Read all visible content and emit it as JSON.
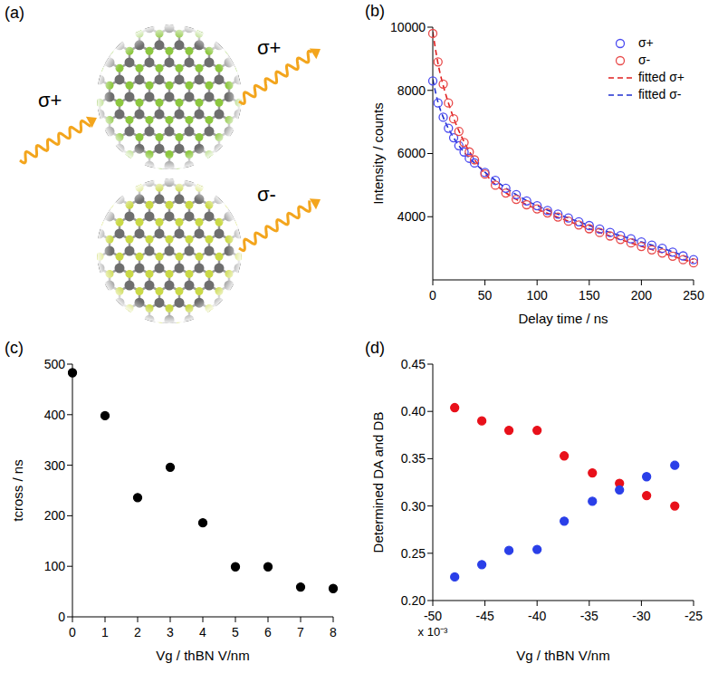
{
  "diagram": {
    "panel": "(a)",
    "arrows": [
      "σ+",
      "σ+",
      "σ-"
    ]
  },
  "chart_data": [
    {
      "type": "line",
      "title": "(b)",
      "x_label": "Delay time / ns",
      "y_label": "Intensity / counts",
      "x": [
        0,
        5,
        10,
        15,
        20,
        25,
        30,
        35,
        40,
        50,
        60,
        70,
        80,
        90,
        100,
        110,
        120,
        130,
        140,
        150,
        160,
        170,
        180,
        190,
        200,
        210,
        220,
        230,
        240,
        250
      ],
      "series": [
        {
          "name": "σ+",
          "type": "scatter",
          "marker": "open_circle",
          "color": "#4a4af0",
          "values": [
            8300,
            7600,
            7150,
            6800,
            6500,
            6250,
            6050,
            5850,
            5700,
            5400,
            5150,
            4900,
            4700,
            4500,
            4350,
            4200,
            4080,
            3960,
            3840,
            3720,
            3610,
            3500,
            3400,
            3300,
            3200,
            3100,
            3000,
            2880,
            2760,
            2640
          ]
        },
        {
          "name": "σ-",
          "type": "scatter",
          "marker": "open_circle",
          "color": "#e84a4a",
          "values": [
            9800,
            8900,
            8200,
            7600,
            7100,
            6700,
            6350,
            6050,
            5800,
            5350,
            5000,
            4750,
            4550,
            4380,
            4250,
            4120,
            3990,
            3860,
            3740,
            3620,
            3500,
            3390,
            3280,
            3170,
            3060,
            2950,
            2850,
            2750,
            2640,
            2540
          ]
        },
        {
          "name": "fitted σ+",
          "type": "line",
          "line_style": "dashed",
          "color": "#e02020",
          "values": [
            9850,
            8850,
            8150,
            7600,
            7120,
            6720,
            6370,
            6070,
            5810,
            5370,
            5020,
            4760,
            4550,
            4380,
            4240,
            4110,
            3980,
            3860,
            3740,
            3620,
            3500,
            3390,
            3280,
            3170,
            3060,
            2960,
            2860,
            2750,
            2650,
            2550
          ]
        },
        {
          "name": "fitted σ-",
          "type": "line",
          "line_style": "dashed",
          "color": "#2030d0",
          "values": [
            8350,
            7620,
            7150,
            6790,
            6500,
            6250,
            6040,
            5860,
            5700,
            5410,
            5150,
            4910,
            4700,
            4510,
            4350,
            4210,
            4080,
            3960,
            3840,
            3720,
            3610,
            3500,
            3400,
            3300,
            3200,
            3100,
            3000,
            2890,
            2770,
            2650
          ]
        }
      ],
      "xlim": [
        0,
        250
      ],
      "ylim": [
        2000,
        10000
      ],
      "xticks": [
        0,
        50,
        100,
        150,
        200,
        250
      ],
      "yticks": [
        4000,
        6000,
        8000,
        10000
      ],
      "legend": "upper right"
    },
    {
      "type": "scatter",
      "title": "(c)",
      "x_label": "Vg / thBN  V/nm",
      "y_label": "tcross / ns",
      "x": [
        0,
        1,
        2,
        3,
        4,
        5,
        6,
        7,
        8
      ],
      "series": [
        {
          "marker": "circle",
          "color": "#000000",
          "values": [
            483,
            398,
            236,
            296,
            186,
            99,
            99,
            59,
            56
          ]
        }
      ],
      "xlim": [
        0,
        8
      ],
      "ylim": [
        0,
        500
      ],
      "xticks": [
        0,
        1,
        2,
        3,
        4,
        5,
        6,
        7,
        8
      ],
      "yticks": [
        0,
        100,
        200,
        300,
        400,
        500
      ]
    },
    {
      "type": "scatter",
      "title": "(d)",
      "x_label": "Vg / thBN  V/nm",
      "y_label": "Determined DA and DB",
      "annotation": "x 10⁻³",
      "x": [
        -0.0479,
        -0.0453,
        -0.0427,
        -0.04,
        -0.0374,
        -0.0347,
        -0.0321,
        -0.0295,
        -0.0268
      ],
      "series": [
        {
          "marker": "circle",
          "color": "#e8101a",
          "values": [
            0.404,
            0.39,
            0.38,
            0.38,
            0.353,
            0.335,
            0.324,
            0.311,
            0.3
          ]
        },
        {
          "marker": "circle",
          "color": "#2a3fe8",
          "values": [
            0.225,
            0.238,
            0.253,
            0.254,
            0.284,
            0.305,
            0.317,
            0.331,
            0.343
          ]
        }
      ],
      "xlim": [
        -0.05,
        -0.025
      ],
      "ylim": [
        0.2,
        0.45
      ],
      "xticks": [
        {
          "value": -0.05,
          "label": "-50"
        },
        {
          "value": -0.045,
          "label": "-45"
        },
        {
          "value": -0.04,
          "label": "-40"
        },
        {
          "value": -0.035,
          "label": "-35"
        },
        {
          "value": -0.03,
          "label": "-30"
        },
        {
          "value": -0.025,
          "label": "-25"
        }
      ],
      "yticks": [
        {
          "value": 0.2,
          "label": "0.20"
        },
        0.25,
        {
          "value": 0.3,
          "label": "0.30"
        },
        0.35,
        {
          "value": 0.4,
          "label": "0.40"
        },
        0.45
      ]
    }
  ]
}
